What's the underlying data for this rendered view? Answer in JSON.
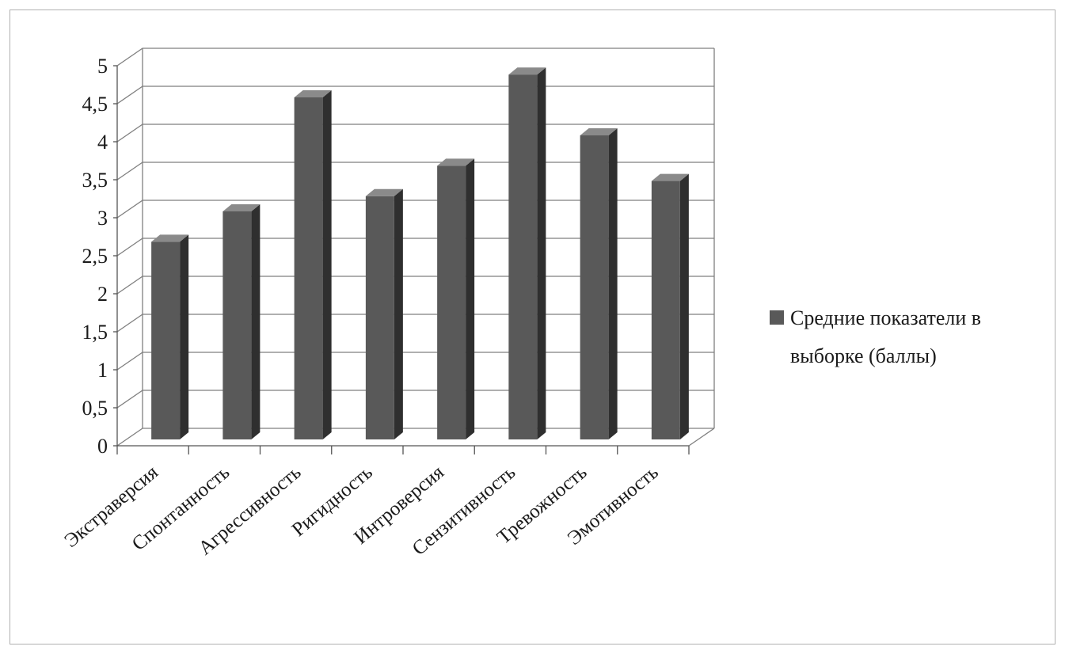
{
  "chart_data": {
    "type": "bar",
    "style": "3d-column",
    "categories": [
      "Экстраверсия",
      "Спонтанность",
      "Агрессивность",
      "Ригидность",
      "Интроверсия",
      "Сензитивность",
      "Тревожность",
      "Эмотивность"
    ],
    "series": [
      {
        "name": "Средние показатели  в выборке (баллы)",
        "values": [
          2.6,
          3.0,
          4.5,
          3.2,
          3.6,
          4.8,
          4.0,
          3.4
        ]
      }
    ],
    "ylim": [
      0,
      5
    ],
    "ytick_labels": [
      "0",
      "0,5",
      "1",
      "1,5",
      "2",
      "2,5",
      "3",
      "3,5",
      "4",
      "4,5",
      "5"
    ],
    "grid": true,
    "legend_position": "right",
    "legend_lines": [
      "Средние показатели  в",
      "выборке (баллы)"
    ],
    "colors": {
      "bar_front": "#595959",
      "bar_side": "#2f2f2f",
      "bar_top": "#8a8a8a",
      "grid": "#7f7f7f",
      "legend_swatch": "#595959"
    }
  }
}
